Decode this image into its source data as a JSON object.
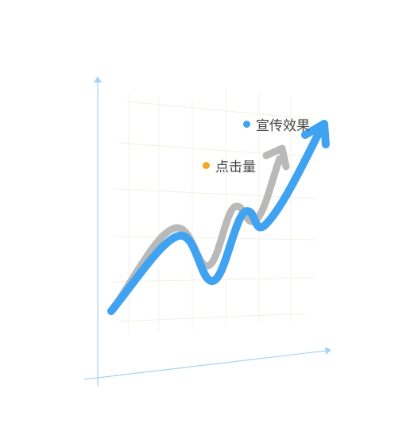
{
  "legend": [
    {
      "name": "宣传效果",
      "color": "#3fa3f2",
      "marker": "dot"
    },
    {
      "name": "点击量",
      "color": "#f2a928",
      "marker": "dot"
    }
  ],
  "colors": {
    "axis": "#a8d3f0",
    "grid": "#f1ede1",
    "primary_arrow": "#3fa3f2",
    "secondary_arrow": "#b9b9b9"
  },
  "icons": {
    "primary_arrowhead": "arrow-up-right-icon",
    "secondary_arrowhead": "arrow-up-right-icon"
  }
}
